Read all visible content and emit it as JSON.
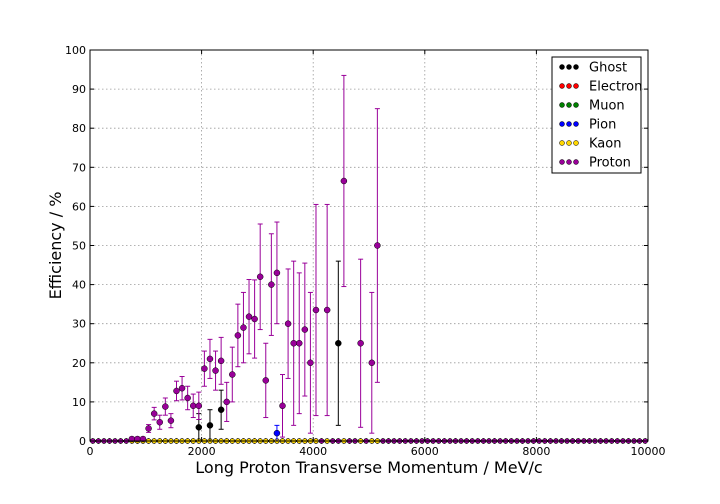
{
  "chart_data": {
    "type": "scatter",
    "title": "",
    "xlabel": "Long Proton Transverse Momentum / MeV/c",
    "ylabel": "Efficiency / %",
    "xlim": [
      0,
      10000
    ],
    "ylim": [
      0,
      100
    ],
    "xticks": [
      0,
      2000,
      4000,
      6000,
      8000,
      10000
    ],
    "yticks": [
      0,
      10,
      20,
      30,
      40,
      50,
      60,
      70,
      80,
      90,
      100
    ],
    "grid": true,
    "legend_position": "top-right",
    "zero_baseline_step": 100,
    "series": [
      {
        "name": "Ghost",
        "color": "#000000",
        "points": [
          {
            "x": 1950,
            "y": 3.5,
            "err": 3.5
          },
          {
            "x": 2150,
            "y": 4.0,
            "err": 4.0
          },
          {
            "x": 2350,
            "y": 8.0,
            "err": 5.0
          },
          {
            "x": 4450,
            "y": 25.0,
            "err": 21.0
          }
        ]
      },
      {
        "name": "Electron",
        "color": "#ff0000",
        "points": []
      },
      {
        "name": "Muon",
        "color": "#008000",
        "points": []
      },
      {
        "name": "Pion",
        "color": "#0000ff",
        "points": [
          {
            "x": 3350,
            "y": 2.0,
            "err": 2.0
          }
        ]
      },
      {
        "name": "Kaon",
        "color": "#ffd700",
        "points": []
      },
      {
        "name": "Proton",
        "color": "#990099",
        "points": [
          {
            "x": 750,
            "y": 0.5,
            "err": 0.5
          },
          {
            "x": 850,
            "y": 0.5,
            "err": 0.5
          },
          {
            "x": 950,
            "y": 0.5,
            "err": 0.5
          },
          {
            "x": 1050,
            "y": 3.2,
            "err": 1.0
          },
          {
            "x": 1150,
            "y": 7.0,
            "err": 1.6
          },
          {
            "x": 1250,
            "y": 4.8,
            "err": 1.8
          },
          {
            "x": 1350,
            "y": 8.8,
            "err": 2.2
          },
          {
            "x": 1450,
            "y": 5.2,
            "err": 1.8
          },
          {
            "x": 1550,
            "y": 12.8,
            "err": 2.5
          },
          {
            "x": 1650,
            "y": 13.5,
            "err": 3.0
          },
          {
            "x": 1750,
            "y": 11.0,
            "err": 3.0
          },
          {
            "x": 1850,
            "y": 9.0,
            "err": 3.0
          },
          {
            "x": 1950,
            "y": 9.0,
            "err": 3.5
          },
          {
            "x": 2050,
            "y": 18.5,
            "err": 4.5
          },
          {
            "x": 2150,
            "y": 21.0,
            "err": 5.0
          },
          {
            "x": 2250,
            "y": 18.0,
            "err": 5.0
          },
          {
            "x": 2350,
            "y": 20.5,
            "err": 6.0
          },
          {
            "x": 2450,
            "y": 10.0,
            "err": 5.0
          },
          {
            "x": 2550,
            "y": 17.0,
            "err": 7.0
          },
          {
            "x": 2650,
            "y": 27.0,
            "err": 8.0
          },
          {
            "x": 2750,
            "y": 29.0,
            "err": 9.0
          },
          {
            "x": 2850,
            "y": 31.8,
            "err": 9.5
          },
          {
            "x": 2950,
            "y": 31.2,
            "err": 10.0
          },
          {
            "x": 3050,
            "y": 42.0,
            "err": 13.5
          },
          {
            "x": 3150,
            "y": 15.5,
            "err": 9.5
          },
          {
            "x": 3250,
            "y": 40.0,
            "err": 13.0
          },
          {
            "x": 3350,
            "y": 43.0,
            "err": 13.0
          },
          {
            "x": 3450,
            "y": 9.0,
            "err": 8.0
          },
          {
            "x": 3550,
            "y": 30.0,
            "err": 14.0
          },
          {
            "x": 3650,
            "y": 25.0,
            "err": 21.0
          },
          {
            "x": 3750,
            "y": 25.0,
            "err": 18.0
          },
          {
            "x": 3850,
            "y": 28.5,
            "err": 17.0
          },
          {
            "x": 3950,
            "y": 20.0,
            "err": 18.0
          },
          {
            "x": 4050,
            "y": 33.5,
            "err": 27.0
          },
          {
            "x": 4250,
            "y": 33.5,
            "err": 27.0
          },
          {
            "x": 4550,
            "y": 66.5,
            "err": 27.0
          },
          {
            "x": 4850,
            "y": 25.0,
            "err": 21.5
          },
          {
            "x": 5050,
            "y": 20.0,
            "err": 18.0
          },
          {
            "x": 5150,
            "y": 50.0,
            "err": 35.0
          }
        ]
      }
    ]
  }
}
